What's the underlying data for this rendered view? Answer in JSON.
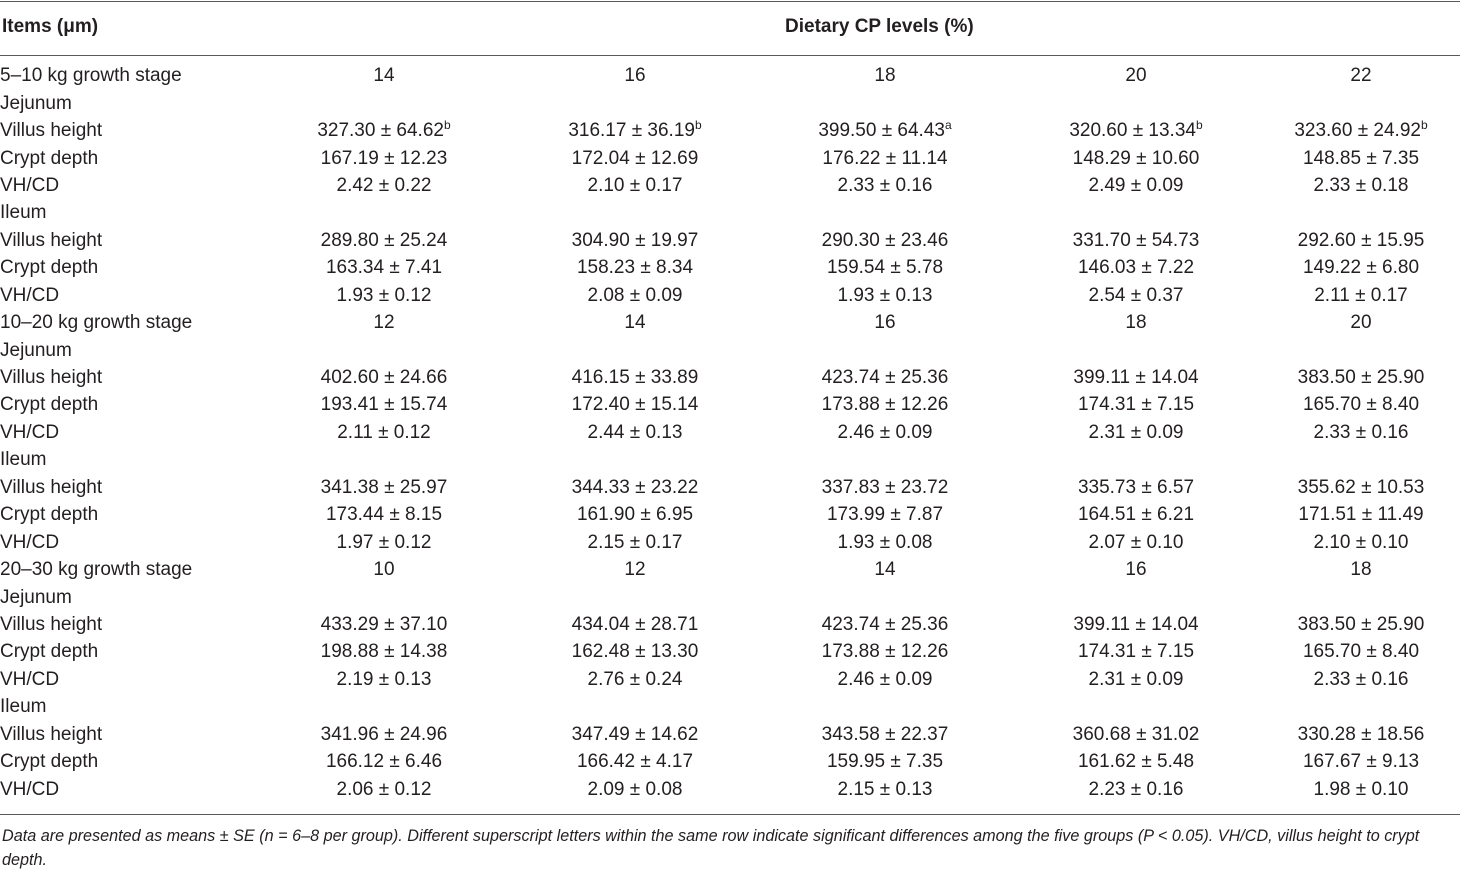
{
  "header": {
    "items_label": "Items (μm)",
    "group_label": "Dietary CP levels (%)"
  },
  "rows": [
    {
      "label": "5–10 kg growth stage",
      "cells": [
        "14",
        "16",
        "18",
        "20",
        "22"
      ],
      "sups": [
        "",
        "",
        "",
        "",
        ""
      ]
    },
    {
      "label": "Jejunum",
      "cells": [
        "",
        "",
        "",
        "",
        ""
      ],
      "sups": [
        "",
        "",
        "",
        "",
        ""
      ]
    },
    {
      "label": "Villus height",
      "cells": [
        "327.30 ± 64.62",
        "316.17 ± 36.19",
        "399.50 ± 64.43",
        "320.60 ± 13.34",
        "323.60 ± 24.92"
      ],
      "sups": [
        "b",
        "b",
        "a",
        "b",
        "b"
      ]
    },
    {
      "label": "Crypt depth",
      "cells": [
        "167.19 ± 12.23",
        "172.04 ± 12.69",
        "176.22 ± 11.14",
        "148.29 ± 10.60",
        "148.85 ± 7.35"
      ],
      "sups": [
        "",
        "",
        "",
        "",
        ""
      ]
    },
    {
      "label": "VH/CD",
      "cells": [
        "2.42 ± 0.22",
        "2.10 ± 0.17",
        "2.33 ± 0.16",
        "2.49 ± 0.09",
        "2.33 ± 0.18"
      ],
      "sups": [
        "",
        "",
        "",
        "",
        ""
      ]
    },
    {
      "label": "Ileum",
      "cells": [
        "",
        "",
        "",
        "",
        ""
      ],
      "sups": [
        "",
        "",
        "",
        "",
        ""
      ]
    },
    {
      "label": "Villus height",
      "cells": [
        "289.80 ± 25.24",
        "304.90 ± 19.97",
        "290.30 ± 23.46",
        "331.70 ± 54.73",
        "292.60 ± 15.95"
      ],
      "sups": [
        "",
        "",
        "",
        "",
        ""
      ]
    },
    {
      "label": "Crypt depth",
      "cells": [
        "163.34 ± 7.41",
        "158.23 ± 8.34",
        "159.54 ± 5.78",
        "146.03 ± 7.22",
        "149.22 ± 6.80"
      ],
      "sups": [
        "",
        "",
        "",
        "",
        ""
      ]
    },
    {
      "label": "VH/CD",
      "cells": [
        "1.93 ± 0.12",
        "2.08 ± 0.09",
        "1.93 ± 0.13",
        "2.54 ± 0.37",
        "2.11 ± 0.17"
      ],
      "sups": [
        "",
        "",
        "",
        "",
        ""
      ]
    },
    {
      "label": "10–20 kg growth stage",
      "cells": [
        "12",
        "14",
        "16",
        "18",
        "20"
      ],
      "sups": [
        "",
        "",
        "",
        "",
        ""
      ]
    },
    {
      "label": "Jejunum",
      "cells": [
        "",
        "",
        "",
        "",
        ""
      ],
      "sups": [
        "",
        "",
        "",
        "",
        ""
      ]
    },
    {
      "label": "Villus height",
      "cells": [
        "402.60 ± 24.66",
        "416.15 ± 33.89",
        "423.74 ± 25.36",
        "399.11 ± 14.04",
        "383.50 ± 25.90"
      ],
      "sups": [
        "",
        "",
        "",
        "",
        ""
      ]
    },
    {
      "label": "Crypt depth",
      "cells": [
        "193.41 ± 15.74",
        "172.40 ± 15.14",
        "173.88 ± 12.26",
        "174.31 ± 7.15",
        "165.70 ± 8.40"
      ],
      "sups": [
        "",
        "",
        "",
        "",
        ""
      ]
    },
    {
      "label": "VH/CD",
      "cells": [
        "2.11 ± 0.12",
        "2.44 ± 0.13",
        "2.46 ± 0.09",
        "2.31 ± 0.09",
        "2.33 ± 0.16"
      ],
      "sups": [
        "",
        "",
        "",
        "",
        ""
      ]
    },
    {
      "label": "Ileum",
      "cells": [
        "",
        "",
        "",
        "",
        ""
      ],
      "sups": [
        "",
        "",
        "",
        "",
        ""
      ]
    },
    {
      "label": "Villus height",
      "cells": [
        "341.38 ± 25.97",
        "344.33 ± 23.22",
        "337.83 ± 23.72",
        "335.73 ± 6.57",
        "355.62 ± 10.53"
      ],
      "sups": [
        "",
        "",
        "",
        "",
        ""
      ]
    },
    {
      "label": "Crypt depth",
      "cells": [
        "173.44 ± 8.15",
        "161.90 ± 6.95",
        "173.99 ± 7.87",
        "164.51 ± 6.21",
        "171.51 ± 11.49"
      ],
      "sups": [
        "",
        "",
        "",
        "",
        ""
      ]
    },
    {
      "label": "VH/CD",
      "cells": [
        "1.97 ± 0.12",
        "2.15 ± 0.17",
        "1.93 ± 0.08",
        "2.07 ± 0.10",
        "2.10 ± 0.10"
      ],
      "sups": [
        "",
        "",
        "",
        "",
        ""
      ]
    },
    {
      "label": "20–30 kg growth stage",
      "cells": [
        "10",
        "12",
        "14",
        "16",
        "18"
      ],
      "sups": [
        "",
        "",
        "",
        "",
        ""
      ]
    },
    {
      "label": "Jejunum",
      "cells": [
        "",
        "",
        "",
        "",
        ""
      ],
      "sups": [
        "",
        "",
        "",
        "",
        ""
      ]
    },
    {
      "label": "Villus height",
      "cells": [
        "433.29 ± 37.10",
        "434.04 ± 28.71",
        "423.74 ± 25.36",
        "399.11 ± 14.04",
        "383.50 ± 25.90"
      ],
      "sups": [
        "",
        "",
        "",
        "",
        ""
      ]
    },
    {
      "label": "Crypt depth",
      "cells": [
        "198.88 ± 14.38",
        "162.48 ± 13.30",
        "173.88 ± 12.26",
        "174.31 ± 7.15",
        "165.70 ± 8.40"
      ],
      "sups": [
        "",
        "",
        "",
        "",
        ""
      ]
    },
    {
      "label": "VH/CD",
      "cells": [
        "2.19 ± 0.13",
        "2.76 ± 0.24",
        "2.46 ± 0.09",
        "2.31 ± 0.09",
        "2.33 ± 0.16"
      ],
      "sups": [
        "",
        "",
        "",
        "",
        ""
      ]
    },
    {
      "label": "Ileum",
      "cells": [
        "",
        "",
        "",
        "",
        ""
      ],
      "sups": [
        "",
        "",
        "",
        "",
        ""
      ]
    },
    {
      "label": "Villus height",
      "cells": [
        "341.96 ± 24.96",
        "347.49 ± 14.62",
        "343.58 ± 22.37",
        "360.68 ± 31.02",
        "330.28 ± 18.56"
      ],
      "sups": [
        "",
        "",
        "",
        "",
        ""
      ]
    },
    {
      "label": "Crypt depth",
      "cells": [
        "166.12 ± 6.46",
        "166.42 ± 4.17",
        "159.95 ± 7.35",
        "161.62 ± 5.48",
        "167.67 ± 9.13"
      ],
      "sups": [
        "",
        "",
        "",
        "",
        ""
      ]
    },
    {
      "label": "VH/CD",
      "cells": [
        "2.06 ± 0.12",
        "2.09 ± 0.08",
        "2.15 ± 0.13",
        "2.23 ± 0.16",
        "1.98 ± 0.10"
      ],
      "sups": [
        "",
        "",
        "",
        "",
        ""
      ]
    }
  ],
  "footnote": "Data are presented as means ± SE (n = 6–8 per group). Different superscript letters within the same row indicate significant differences among the five groups (P < 0.05). VH/CD, villus height to crypt depth."
}
